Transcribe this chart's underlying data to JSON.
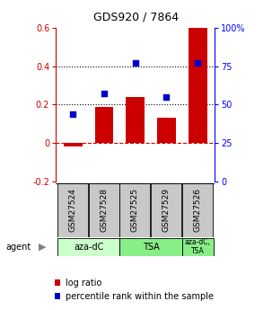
{
  "title": "GDS920 / 7864",
  "samples": [
    "GSM27524",
    "GSM27528",
    "GSM27525",
    "GSM27529",
    "GSM27526"
  ],
  "log_ratio": [
    -0.02,
    0.19,
    0.24,
    0.13,
    0.6
  ],
  "percentile": [
    44,
    57,
    77,
    55,
    77
  ],
  "bar_color": "#cc0000",
  "dot_color": "#0000cc",
  "ylim_left": [
    -0.2,
    0.6
  ],
  "ylim_right": [
    0,
    100
  ],
  "yticks_left": [
    -0.2,
    0.0,
    0.2,
    0.4,
    0.6
  ],
  "yticks_right": [
    0,
    25,
    50,
    75,
    100
  ],
  "hlines": [
    0.0,
    0.2,
    0.4
  ],
  "hline_styles": [
    "dashed",
    "dotted",
    "dotted"
  ],
  "hline_colors": [
    "#cc0000",
    "#000000",
    "#000000"
  ],
  "agent_light": "#ccffcc",
  "agent_dark": "#88ee88",
  "sample_bg": "#c8c8c8",
  "legend_labels": [
    "log ratio",
    "percentile rank within the sample"
  ]
}
